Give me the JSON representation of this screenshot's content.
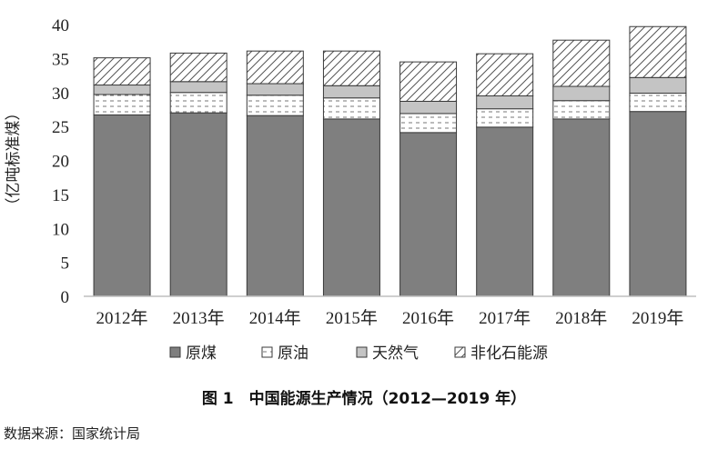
{
  "chart_data": {
    "type": "bar",
    "stacked": true,
    "ylabel": "（亿吨标准煤）",
    "ylim": [
      0,
      40
    ],
    "yticks": [
      0,
      5,
      10,
      15,
      20,
      25,
      30,
      35,
      40
    ],
    "categories": [
      "2012年",
      "2013年",
      "2014年",
      "2015年",
      "2016年",
      "2017年",
      "2018年",
      "2019年"
    ],
    "series": [
      {
        "name": "原煤",
        "values": [
          26.7,
          27.0,
          26.6,
          26.1,
          24.1,
          24.9,
          26.1,
          27.2
        ],
        "fill": "#7f7f7f",
        "pattern": "solid"
      },
      {
        "name": "原油",
        "values": [
          3.0,
          3.0,
          3.0,
          3.1,
          2.8,
          2.7,
          2.7,
          2.7
        ],
        "fill": "#ffffff",
        "pattern": "dashed"
      },
      {
        "name": "天然气",
        "values": [
          1.4,
          1.6,
          1.7,
          1.8,
          1.8,
          1.9,
          2.1,
          2.3
        ],
        "fill": "#c4c4c4",
        "pattern": "solid"
      },
      {
        "name": "非化石能源",
        "values": [
          4.0,
          4.2,
          4.8,
          5.1,
          5.8,
          6.2,
          6.8,
          7.5
        ],
        "fill": "#ffffff",
        "pattern": "hatch"
      }
    ],
    "legend_position": "bottom",
    "grid": false
  },
  "caption": "图 1　中国能源生产情况（2012—2019 年）",
  "source": "数据来源：国家统计局",
  "colors": {
    "axis": "#bfbfbf",
    "outline": "#3a3a3a"
  }
}
